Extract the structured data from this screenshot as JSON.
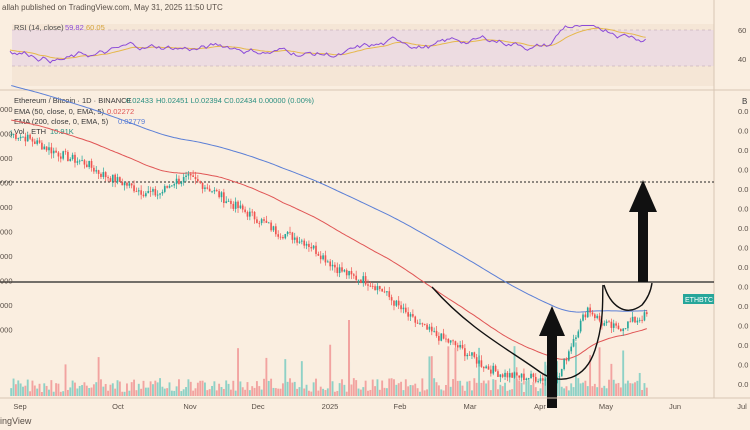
{
  "header": {
    "author_text": "allah published on TradingView.com, May 31, 2025 11:50 UTC"
  },
  "rsi_panel": {
    "label": "RSI (14, close)",
    "value": "59.82",
    "ma_value": "60.05",
    "scale": [
      "60",
      "40"
    ]
  },
  "main_panel": {
    "title_line": "Ethereum / Bitcoin · 1D · BINANCE",
    "ohlc": "H0.02451 L0.02394 C0.02434 0.00000 (0.00%)",
    "open_fragment": "0.02433",
    "ema50_label": "EMA (50, close, 0, EMA, 5)",
    "ema50_value": "0.02272",
    "ema200_label": "EMA (200, close, 0, EMA, 5)",
    "ema200_value": "0.02779",
    "vol_label": "Vol · ETH",
    "vol_value": "10.91K",
    "symbol_tag": "ETHBTC",
    "right_edge_letter": "B",
    "left_ticks": [
      "000",
      "000",
      "000",
      "000",
      "000",
      "000",
      "000",
      "000",
      "000",
      "000"
    ],
    "right_ticks": [
      "0.0",
      "0.0",
      "0.0",
      "0.0",
      "0.0",
      "0.0",
      "0.0",
      "0.0",
      "0.0",
      "0.0",
      "0.0",
      "0.0",
      "0.0",
      "0.0",
      "0.0"
    ],
    "xaxis_labels": [
      "Sep",
      "Oct",
      "Nov",
      "Dec",
      "2025",
      "Feb",
      "Mar",
      "Apr",
      "May",
      "Jun",
      "Jul"
    ]
  },
  "footer": {
    "brand_text": "ingView"
  },
  "colors": {
    "background": "#faeee0",
    "up_candle": "#26a69a",
    "down_candle": "#ef5350",
    "ema50": "#e05555",
    "ema200": "#5b7fd6",
    "rsi_line": "#8c4bd8",
    "rsi_ma": "#e6b84b",
    "arrow": "#111111"
  },
  "chart_data": {
    "type": "candlestick",
    "symbol": "ETHBTC",
    "exchange": "BINANCE",
    "timeframe": "1D",
    "x": [
      "Sep",
      "Oct",
      "Nov",
      "Dec",
      "2025",
      "Feb",
      "Mar",
      "Apr",
      "May",
      "Jun",
      "Jul"
    ],
    "close_path": [
      0.0415,
      0.0412,
      0.0405,
      0.0398,
      0.0392,
      0.0388,
      0.0378,
      0.0372,
      0.0366,
      0.036,
      0.0358,
      0.037,
      0.0373,
      0.0367,
      0.0358,
      0.0348,
      0.034,
      0.0332,
      0.0322,
      0.0318,
      0.0312,
      0.03,
      0.0288,
      0.028,
      0.0276,
      0.0268,
      0.0254,
      0.024,
      0.023,
      0.0222,
      0.0215,
      0.0205,
      0.0195,
      0.0188,
      0.0185,
      0.0184,
      0.0183,
      0.0182,
      0.022,
      0.025,
      0.0235,
      0.023,
      0.0237,
      0.0243
    ],
    "ema50_last": 0.02272,
    "ema200_last": 0.02779,
    "ohlc_last": {
      "open": 0.02433,
      "high": 0.02451,
      "low": 0.02394,
      "close": 0.02434
    },
    "rsi_last": 59.82,
    "volume_last": "10.91K"
  }
}
